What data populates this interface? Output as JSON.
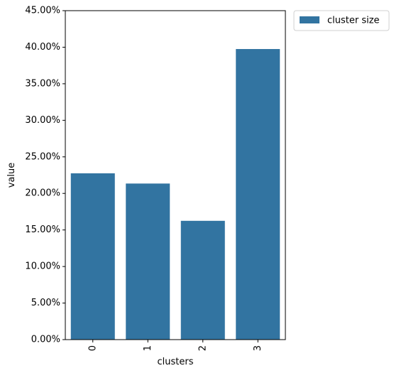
{
  "chart_data": {
    "type": "bar",
    "categories": [
      "0",
      "1",
      "2",
      "3"
    ],
    "series": [
      {
        "name": "cluster size",
        "values": [
          0.2275,
          0.2135,
          0.1625,
          0.3975
        ]
      }
    ],
    "xlabel": "clusters",
    "ylabel": "value",
    "ylim": [
      0,
      0.45
    ],
    "yticks": [
      0,
      0.05,
      0.1,
      0.15,
      0.2,
      0.25,
      0.3,
      0.35,
      0.4,
      0.45
    ],
    "ytick_labels": [
      "0.00%",
      "5.00%",
      "10.00%",
      "15.00%",
      "20.00%",
      "25.00%",
      "30.00%",
      "35.00%",
      "40.00%",
      "45.00%"
    ],
    "bar_color": "#3274a1",
    "grid": false,
    "legend_position": "outside-top-right",
    "xtick_rotation": 90
  }
}
